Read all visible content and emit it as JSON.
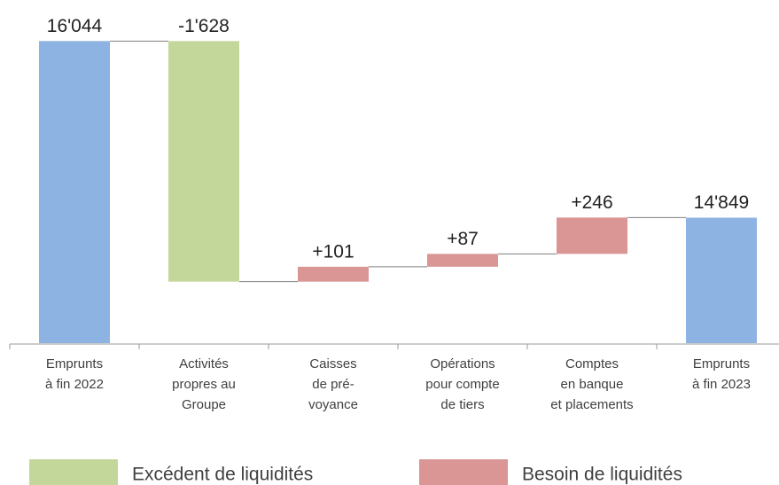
{
  "chart_data": {
    "type": "waterfall",
    "categories": [
      [
        "Emprunts",
        "à fin 2022"
      ],
      [
        "Activités",
        "propres au",
        "Groupe"
      ],
      [
        "Caisses",
        "de pré-",
        "voyance"
      ],
      [
        "Opérations",
        "pour compte",
        "de tiers"
      ],
      [
        "Comptes",
        "en banque",
        "et placements"
      ],
      [
        "Emprunts",
        "à fin 2023"
      ]
    ],
    "measures": [
      "total",
      "relative",
      "relative",
      "relative",
      "relative",
      "total"
    ],
    "values": [
      16044,
      -1628,
      101,
      87,
      246,
      14849
    ],
    "value_labels": [
      "16'044",
      "-1'628",
      "+101",
      "+87",
      "+246",
      "14'849"
    ],
    "total_color": "#8db3e2",
    "legend": [
      {
        "name": "Excédent de liquidités",
        "color": "#c4d79b"
      },
      {
        "name": "Besoin de liquidités",
        "color": "#d99694"
      }
    ],
    "ylim": [
      14000,
      16100
    ]
  }
}
